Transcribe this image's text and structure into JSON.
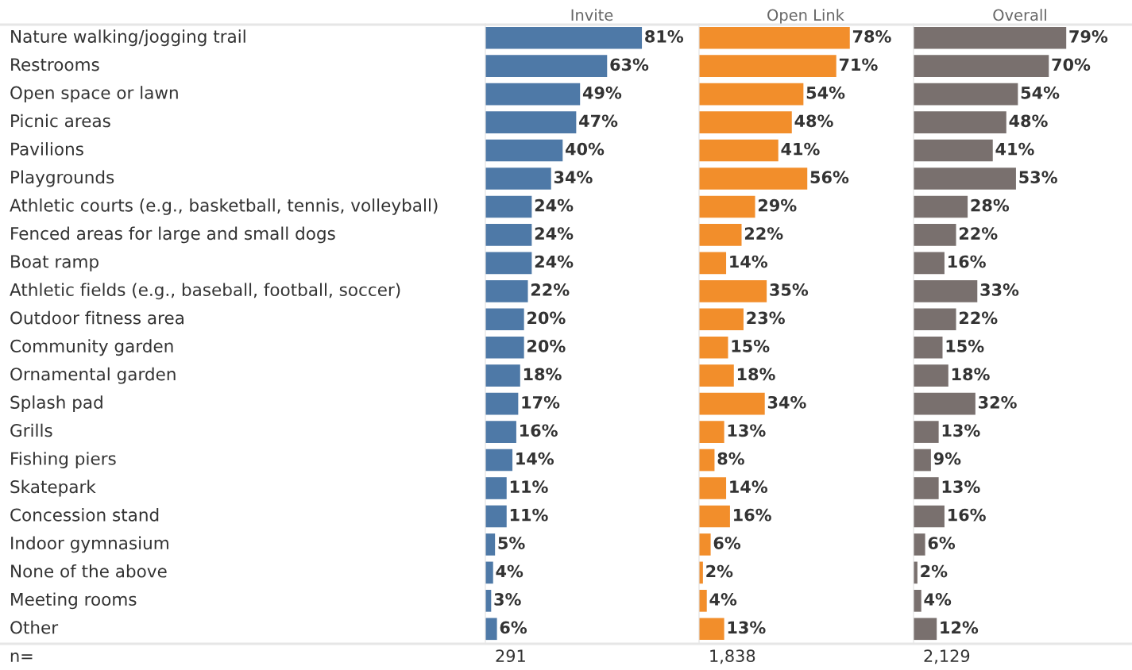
{
  "chart_data": [
    {
      "type": "bar",
      "orientation": "horizontal",
      "title": "Invite",
      "tick_labels": "y",
      "categories": [
        "Nature walking/jogging trail",
        "Restrooms",
        "Open space or lawn",
        "Picnic areas",
        "Pavilions",
        "Playgrounds",
        "Athletic courts (e.g., basketball, tennis, volleyball)",
        "Fenced areas for large and small dogs",
        "Boat ramp",
        "Athletic fields (e.g., baseball, football, soccer)",
        "Outdoor fitness area",
        "Community garden",
        "Ornamental garden",
        "Splash pad",
        "Grills",
        "Fishing piers",
        "Skatepark",
        "Concession stand",
        "Indoor gymnasium",
        "None of the above",
        "Meeting rooms",
        "Other"
      ],
      "series": [
        {
          "color": "#4e79a7",
          "values": [
            81,
            63,
            49,
            47,
            40,
            34,
            24,
            24,
            24,
            22,
            20,
            20,
            18,
            17,
            16,
            14,
            11,
            11,
            5,
            4,
            3,
            6
          ],
          "value_labels": [
            "81%",
            "63%",
            "49%",
            "47%",
            "40%",
            "34%",
            "24%",
            "24%",
            "24%",
            "22%",
            "20%",
            "20%",
            "18%",
            "17%",
            "16%",
            "14%",
            "11%",
            "11%",
            "5%",
            "4%",
            "3%",
            "6%"
          ]
        }
      ],
      "annotations": [
        "n=",
        "291"
      ]
    },
    {
      "type": "bar",
      "orientation": "horizontal",
      "title": "Open Link",
      "tick_labels": false,
      "series": [
        {
          "color": "#f28e2b",
          "values": [
            78,
            71,
            54,
            48,
            41,
            56,
            29,
            22,
            14,
            35,
            23,
            15,
            18,
            34,
            13,
            8,
            14,
            16,
            6,
            2,
            4,
            13
          ],
          "value_labels": [
            "78%",
            "71%",
            "54%",
            "48%",
            "41%",
            "56%",
            "29%",
            "22%",
            "14%",
            "35%",
            "23%",
            "15%",
            "18%",
            "34%",
            "13%",
            "8%",
            "14%",
            "16%",
            "6%",
            "2%",
            "4%",
            "13%"
          ]
        }
      ],
      "annotations": [
        "1,838"
      ]
    },
    {
      "type": "bar",
      "orientation": "horizontal",
      "title": "Overall",
      "tick_labels": false,
      "series": [
        {
          "color": "#79706e",
          "values": [
            79,
            70,
            54,
            48,
            41,
            53,
            28,
            22,
            16,
            33,
            22,
            15,
            18,
            32,
            13,
            9,
            13,
            16,
            6,
            2,
            4,
            12
          ],
          "value_labels": [
            "79%",
            "70%",
            "54%",
            "48%",
            "41%",
            "53%",
            "28%",
            "22%",
            "16%",
            "33%",
            "22%",
            "15%",
            "18%",
            "32%",
            "13%",
            "9%",
            "13%",
            "16%",
            "6%",
            "2%",
            "4%",
            "12%"
          ]
        }
      ],
      "annotations": [
        "2,129"
      ]
    }
  ]
}
